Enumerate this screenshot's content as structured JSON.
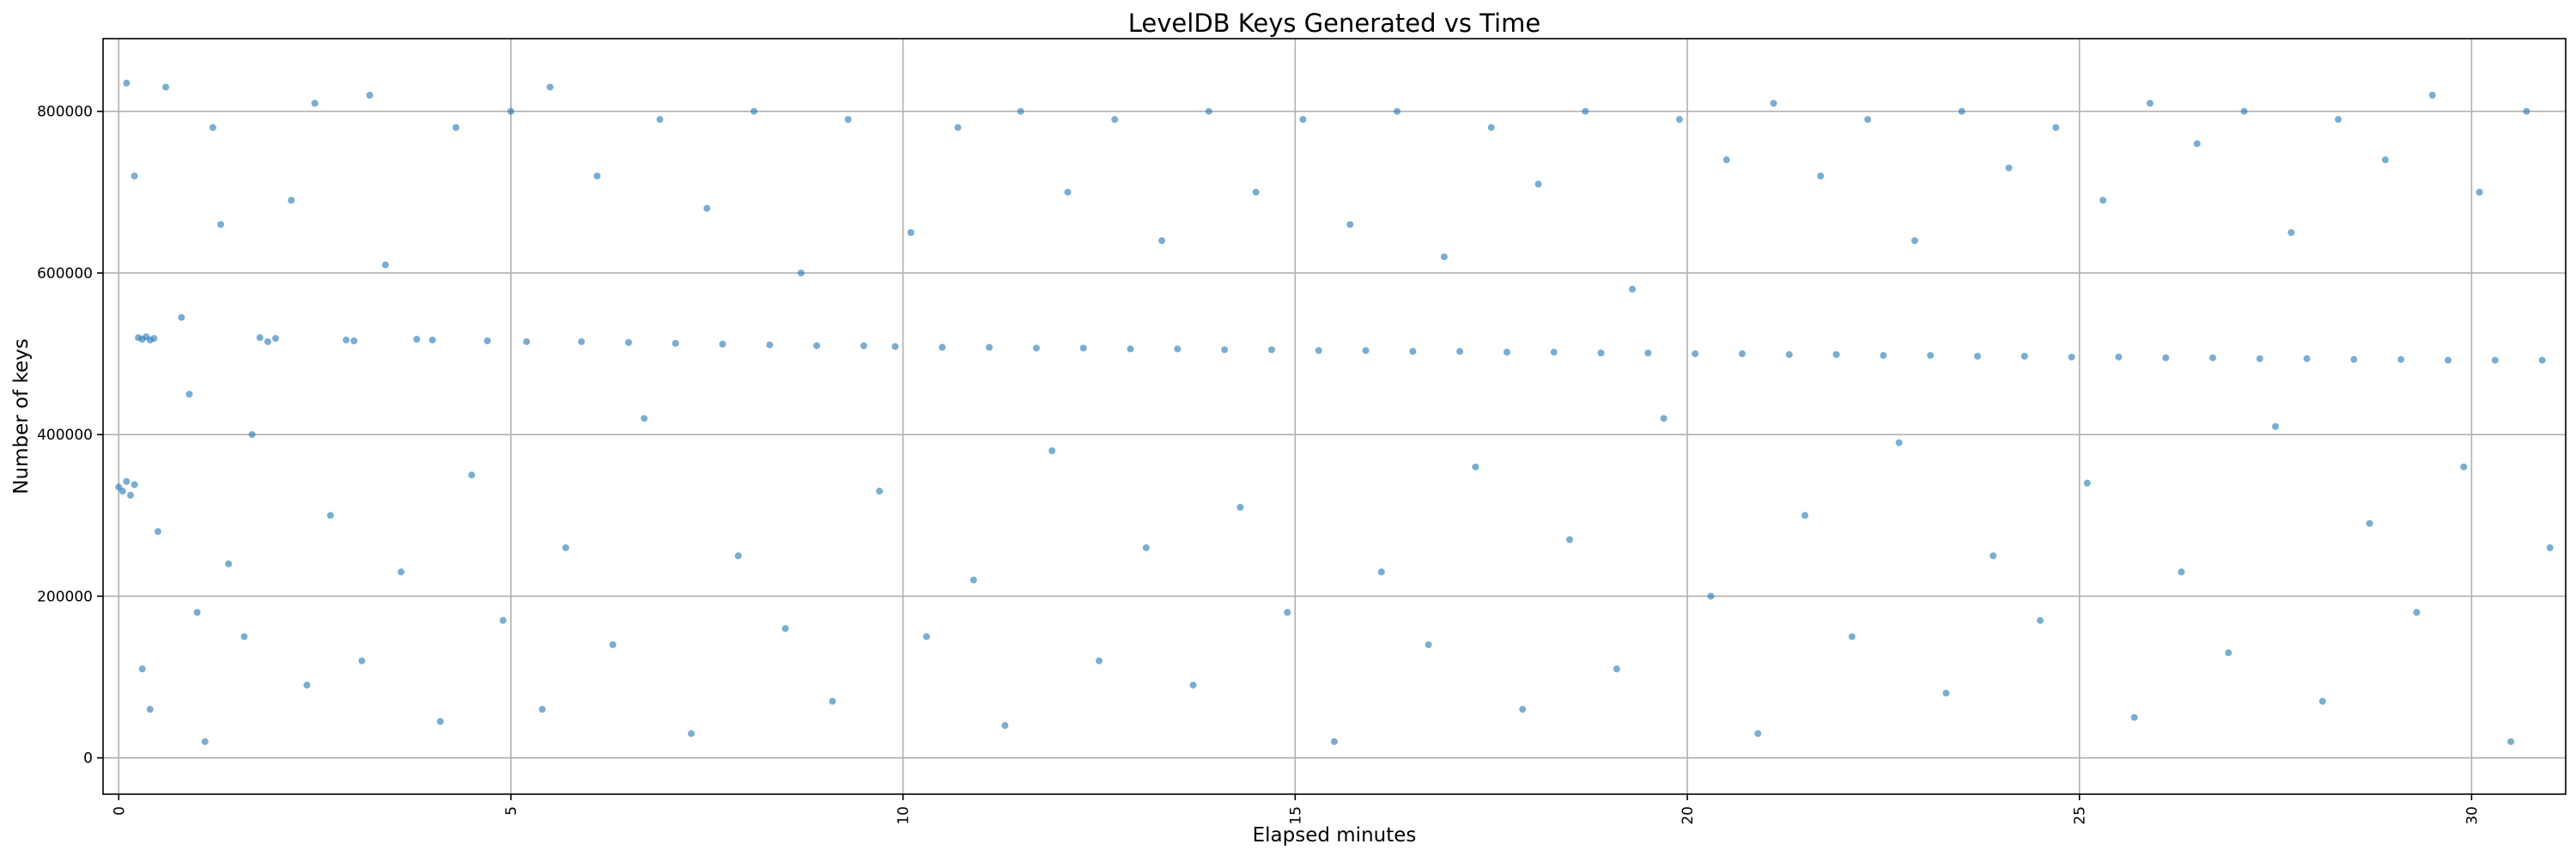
{
  "chart_data": {
    "type": "scatter",
    "title": "LevelDB Keys Generated vs Time",
    "xlabel": "Elapsed minutes",
    "ylabel": "Number of keys",
    "xlim": [
      -0.2,
      31.2
    ],
    "ylim": [
      -45000,
      890000
    ],
    "xticks": [
      0,
      5,
      10,
      15,
      20,
      25,
      30
    ],
    "xtick_labels": [
      "0",
      "5",
      "10",
      "15",
      "20",
      "25",
      "30"
    ],
    "yticks": [
      0,
      200000,
      400000,
      600000,
      800000
    ],
    "ytick_labels": [
      "0",
      "200000",
      "400000",
      "600000",
      "800000"
    ],
    "grid": true,
    "legend": "none",
    "color": "#1f77b4",
    "series": [
      {
        "values": [
          [
            0.0,
            335000
          ],
          [
            0.05,
            330000
          ],
          [
            0.1,
            342000
          ],
          [
            0.15,
            325000
          ],
          [
            0.2,
            338000
          ],
          [
            0.25,
            520000
          ],
          [
            0.3,
            518000
          ],
          [
            0.35,
            521000
          ],
          [
            0.4,
            517000
          ],
          [
            0.45,
            519000
          ],
          [
            0.1,
            835000
          ],
          [
            0.2,
            720000
          ],
          [
            0.3,
            110000
          ],
          [
            0.4,
            60000
          ],
          [
            0.5,
            280000
          ],
          [
            0.6,
            830000
          ],
          [
            0.8,
            545000
          ],
          [
            0.9,
            450000
          ],
          [
            1.0,
            180000
          ],
          [
            1.1,
            20000
          ],
          [
            1.2,
            780000
          ],
          [
            1.3,
            660000
          ],
          [
            1.4,
            240000
          ],
          [
            1.6,
            150000
          ],
          [
            1.7,
            400000
          ],
          [
            1.8,
            520000
          ],
          [
            1.9,
            515000
          ],
          [
            2.0,
            519000
          ],
          [
            2.2,
            690000
          ],
          [
            2.4,
            90000
          ],
          [
            2.5,
            810000
          ],
          [
            2.7,
            300000
          ],
          [
            2.9,
            517000
          ],
          [
            3.0,
            516000
          ],
          [
            3.1,
            120000
          ],
          [
            3.2,
            820000
          ],
          [
            3.4,
            610000
          ],
          [
            3.6,
            230000
          ],
          [
            3.8,
            518000
          ],
          [
            4.0,
            517000
          ],
          [
            4.1,
            45000
          ],
          [
            4.3,
            780000
          ],
          [
            4.5,
            350000
          ],
          [
            4.7,
            516000
          ],
          [
            4.9,
            170000
          ],
          [
            5.0,
            800000
          ],
          [
            5.2,
            515000
          ],
          [
            5.4,
            60000
          ],
          [
            5.5,
            830000
          ],
          [
            5.7,
            260000
          ],
          [
            5.9,
            515000
          ],
          [
            6.1,
            720000
          ],
          [
            6.3,
            140000
          ],
          [
            6.5,
            514000
          ],
          [
            6.7,
            420000
          ],
          [
            6.9,
            790000
          ],
          [
            7.1,
            513000
          ],
          [
            7.3,
            30000
          ],
          [
            7.5,
            680000
          ],
          [
            7.7,
            512000
          ],
          [
            7.9,
            250000
          ],
          [
            8.1,
            800000
          ],
          [
            8.3,
            511000
          ],
          [
            8.5,
            160000
          ],
          [
            8.7,
            600000
          ],
          [
            8.9,
            510000
          ],
          [
            9.1,
            70000
          ],
          [
            9.3,
            790000
          ],
          [
            9.5,
            510000
          ],
          [
            9.7,
            330000
          ],
          [
            9.9,
            509000
          ],
          [
            10.1,
            650000
          ],
          [
            10.3,
            150000
          ],
          [
            10.5,
            508000
          ],
          [
            10.7,
            780000
          ],
          [
            10.9,
            220000
          ],
          [
            11.1,
            508000
          ],
          [
            11.3,
            40000
          ],
          [
            11.5,
            800000
          ],
          [
            11.7,
            507000
          ],
          [
            11.9,
            380000
          ],
          [
            12.1,
            700000
          ],
          [
            12.3,
            507000
          ],
          [
            12.5,
            120000
          ],
          [
            12.7,
            790000
          ],
          [
            12.9,
            506000
          ],
          [
            13.1,
            260000
          ],
          [
            13.3,
            640000
          ],
          [
            13.5,
            506000
          ],
          [
            13.7,
            90000
          ],
          [
            13.9,
            800000
          ],
          [
            14.1,
            505000
          ],
          [
            14.3,
            310000
          ],
          [
            14.5,
            700000
          ],
          [
            14.7,
            505000
          ],
          [
            14.9,
            180000
          ],
          [
            15.1,
            790000
          ],
          [
            15.3,
            504000
          ],
          [
            15.5,
            20000
          ],
          [
            15.7,
            660000
          ],
          [
            15.9,
            504000
          ],
          [
            16.1,
            230000
          ],
          [
            16.3,
            800000
          ],
          [
            16.5,
            503000
          ],
          [
            16.7,
            140000
          ],
          [
            16.9,
            620000
          ],
          [
            17.1,
            503000
          ],
          [
            17.3,
            360000
          ],
          [
            17.5,
            780000
          ],
          [
            17.7,
            502000
          ],
          [
            17.9,
            60000
          ],
          [
            18.1,
            710000
          ],
          [
            18.3,
            502000
          ],
          [
            18.5,
            270000
          ],
          [
            18.7,
            800000
          ],
          [
            18.9,
            501000
          ],
          [
            19.1,
            110000
          ],
          [
            19.3,
            580000
          ],
          [
            19.5,
            501000
          ],
          [
            19.7,
            420000
          ],
          [
            19.9,
            790000
          ],
          [
            20.1,
            500000
          ],
          [
            20.3,
            200000
          ],
          [
            20.5,
            740000
          ],
          [
            20.7,
            500000
          ],
          [
            20.9,
            30000
          ],
          [
            21.1,
            810000
          ],
          [
            21.3,
            499000
          ],
          [
            21.5,
            300000
          ],
          [
            21.7,
            720000
          ],
          [
            21.9,
            499000
          ],
          [
            22.1,
            150000
          ],
          [
            22.3,
            790000
          ],
          [
            22.5,
            498000
          ],
          [
            22.7,
            390000
          ],
          [
            22.9,
            640000
          ],
          [
            23.1,
            498000
          ],
          [
            23.3,
            80000
          ],
          [
            23.5,
            800000
          ],
          [
            23.7,
            497000
          ],
          [
            23.9,
            250000
          ],
          [
            24.1,
            730000
          ],
          [
            24.3,
            497000
          ],
          [
            24.5,
            170000
          ],
          [
            24.7,
            780000
          ],
          [
            24.9,
            496000
          ],
          [
            25.1,
            340000
          ],
          [
            25.3,
            690000
          ],
          [
            25.5,
            496000
          ],
          [
            25.7,
            50000
          ],
          [
            25.9,
            810000
          ],
          [
            26.1,
            495000
          ],
          [
            26.3,
            230000
          ],
          [
            26.5,
            760000
          ],
          [
            26.7,
            495000
          ],
          [
            26.9,
            130000
          ],
          [
            27.1,
            800000
          ],
          [
            27.3,
            494000
          ],
          [
            27.5,
            410000
          ],
          [
            27.7,
            650000
          ],
          [
            27.9,
            494000
          ],
          [
            28.1,
            70000
          ],
          [
            28.3,
            790000
          ],
          [
            28.5,
            493000
          ],
          [
            28.7,
            290000
          ],
          [
            28.9,
            740000
          ],
          [
            29.1,
            493000
          ],
          [
            29.3,
            180000
          ],
          [
            29.5,
            820000
          ],
          [
            29.7,
            492000
          ],
          [
            29.9,
            360000
          ],
          [
            30.1,
            700000
          ],
          [
            30.3,
            492000
          ],
          [
            30.5,
            20000
          ],
          [
            30.7,
            800000
          ],
          [
            30.9,
            492000
          ],
          [
            31.0,
            260000
          ]
        ]
      }
    ]
  }
}
